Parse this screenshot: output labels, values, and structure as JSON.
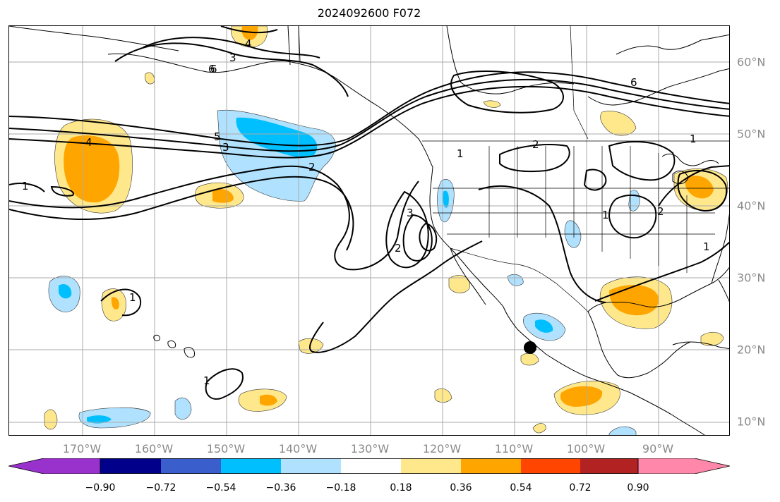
{
  "title": "2024092600 F072",
  "longitude_labels": [
    "170°W",
    "160°W",
    "150°W",
    "140°W",
    "130°W",
    "120°W",
    "110°W",
    "100°W",
    "90°W"
  ],
  "latitude_labels": [
    "60°N",
    "50°N",
    "40°N",
    "30°N",
    "20°N",
    "10°N"
  ],
  "contour_labels": [
    "4",
    "3",
    "6",
    "6",
    "4",
    "1",
    "5",
    "3",
    "2",
    "3",
    "6",
    "2",
    "1",
    "2",
    "1",
    "1",
    "2",
    "1",
    "1",
    "1"
  ],
  "colorbar": {
    "colors": [
      "#9932cc",
      "#00008b",
      "#3a5fcd",
      "#00bfff",
      "#b0e2ff",
      "#ffffff",
      "#ffe88c",
      "#ffa500",
      "#ff4500",
      "#b22222",
      "#ff88aa"
    ],
    "tick_labels": [
      "−0.90",
      "−0.72",
      "−0.54",
      "−0.36",
      "−0.18",
      "0.18",
      "0.36",
      "0.54",
      "0.72",
      "0.90"
    ]
  },
  "colors": {
    "light_yellow": "#ffe88c",
    "orange": "#ffa500",
    "light_blue": "#b0e2ff",
    "blue": "#00bfff",
    "gridline": "#aaaaaa",
    "axis_label": "#8a8a8a"
  }
}
